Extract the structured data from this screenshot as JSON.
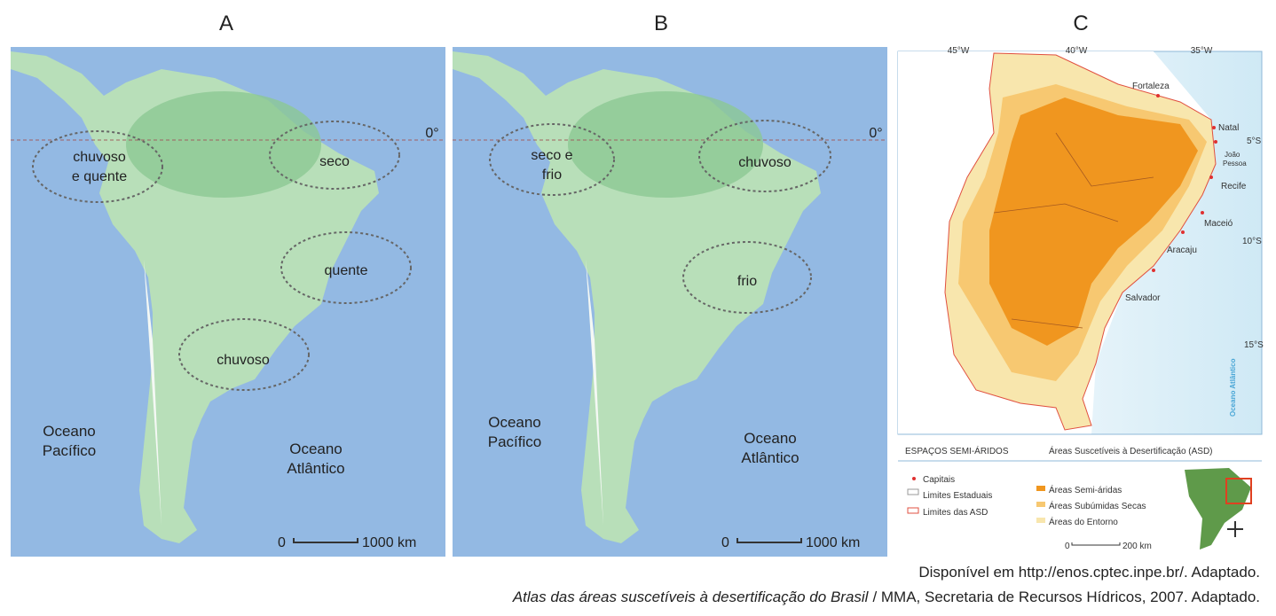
{
  "panels": [
    {
      "label": "A",
      "equator": "0°",
      "regions": [
        {
          "lines": [
            "chuvoso",
            "e quente"
          ]
        },
        {
          "lines": [
            "seco"
          ]
        },
        {
          "lines": [
            "quente"
          ]
        },
        {
          "lines": [
            "chuvoso"
          ]
        }
      ],
      "oceans": [
        {
          "lines": [
            "Oceano",
            "Pacífico"
          ]
        },
        {
          "lines": [
            "Oceano",
            "Atlântico"
          ]
        }
      ],
      "scale": {
        "start": "0",
        "end": "1000 km"
      }
    },
    {
      "label": "B",
      "equator": "0°",
      "regions": [
        {
          "lines": [
            "seco e",
            "frio"
          ]
        },
        {
          "lines": [
            "chuvoso"
          ]
        },
        {
          "lines": [
            "frio"
          ]
        }
      ],
      "oceans": [
        {
          "lines": [
            "Oceano",
            "Pacífico"
          ]
        },
        {
          "lines": [
            "Oceano",
            "Atlântico"
          ]
        }
      ],
      "scale": {
        "start": "0",
        "end": "1000 km"
      }
    },
    {
      "label": "C",
      "longitudes": [
        "45°W",
        "40°W",
        "35°W"
      ],
      "latitudes": [
        "5°S",
        "10°S",
        "15°S"
      ],
      "cities": [
        {
          "lines": [
            "Fortaleza"
          ]
        },
        {
          "lines": [
            "Natal"
          ]
        },
        {
          "lines": [
            "João",
            "Pessoa"
          ]
        },
        {
          "lines": [
            "Recife"
          ]
        },
        {
          "lines": [
            "Maceió"
          ]
        },
        {
          "lines": [
            "Aracaju"
          ]
        },
        {
          "lines": [
            "Salvador"
          ]
        }
      ],
      "ocean": "Oceano Atlântico",
      "legend": {
        "title": "ESPAÇOS SEMI-ÁRIDOS",
        "subtitle": "Áreas Suscetíveis à Desertificação (ASD)",
        "items": [
          "Capitais",
          "Limites Estaduais",
          "Limites das ASD",
          "Áreas Semi-áridas",
          "Áreas Subúmidas Secas",
          "Áreas do Entorno"
        ]
      },
      "scale": {
        "start": "0",
        "end": "200 km"
      }
    }
  ],
  "caption": {
    "line1": "Disponível em http://enos.cptec.inpe.br/. Adaptado.",
    "line2_title": "Atlas das áreas suscetíveis à desertificação do Brasil",
    "line2_rest": "/ MMA, Secretaria de Recursos Hídricos, 2007. Adaptado."
  }
}
